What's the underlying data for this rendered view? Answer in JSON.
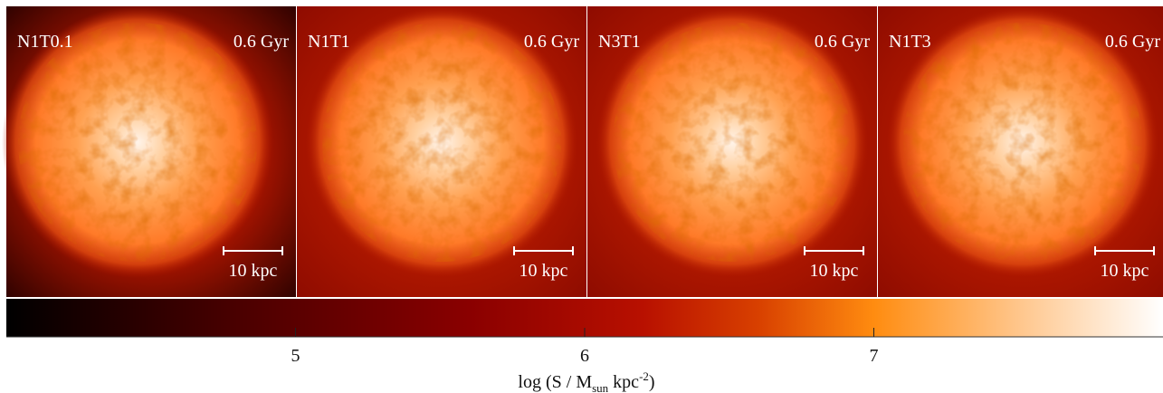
{
  "panels": [
    {
      "label": "N1T0.1",
      "time": "0.6 Gyr",
      "scale_label": "10 kpc"
    },
    {
      "label": "N1T1",
      "time": "0.6 Gyr",
      "scale_label": "10 kpc"
    },
    {
      "label": "N3T1",
      "time": "0.6 Gyr",
      "scale_label": "10 kpc"
    },
    {
      "label": "N1T3",
      "time": "0.6 Gyr",
      "scale_label": "10 kpc"
    }
  ],
  "colorbar": {
    "range": [
      4,
      8
    ],
    "ticks": [
      5,
      6,
      7
    ],
    "label": {
      "text": "log (S / M",
      "sub": "sun",
      "mid": " kpc",
      "sup": "-2",
      "end": ")"
    }
  }
}
